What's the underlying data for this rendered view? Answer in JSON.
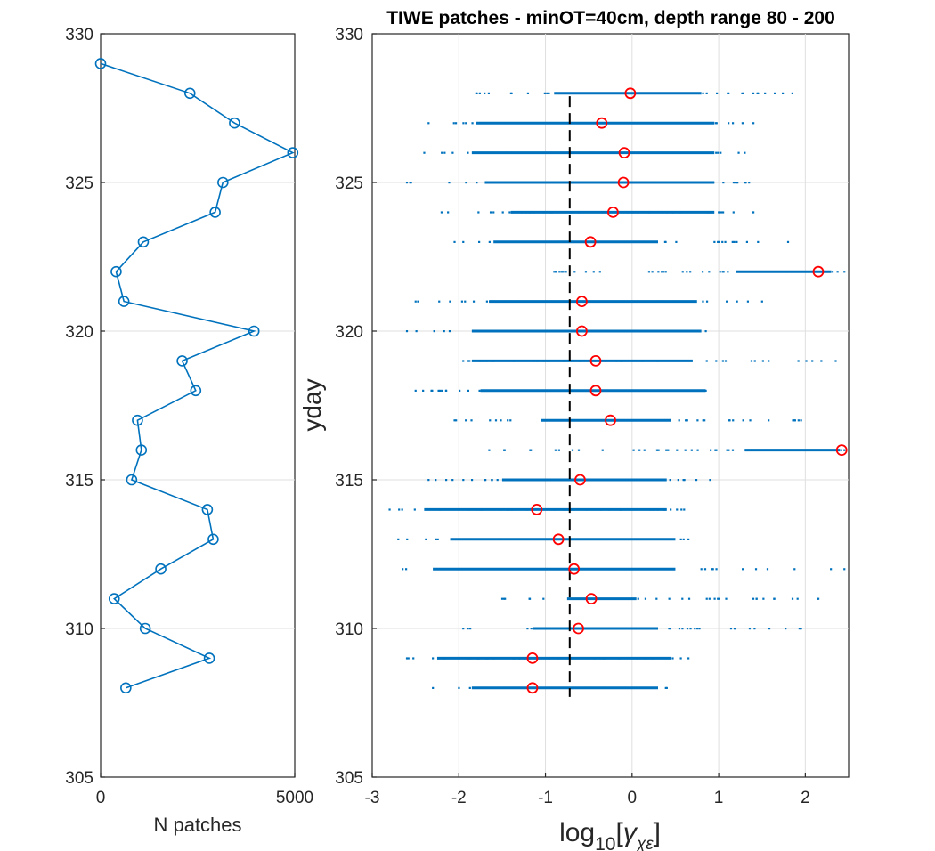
{
  "colors": {
    "series": "#0072bd",
    "median": "#ff0000",
    "reference": "#000000",
    "grid": "#dfdfdf",
    "axis": "#262626"
  },
  "chart_data": [
    {
      "id": "n-patches",
      "type": "line",
      "title": "",
      "xlabel": "N patches",
      "ylabel": "",
      "xlim": [
        0,
        5000
      ],
      "ylim": [
        305,
        330
      ],
      "xticks": [
        0,
        5000
      ],
      "yticks": [
        305,
        310,
        315,
        320,
        325,
        330
      ],
      "xtick_labels": [
        "0",
        "5000"
      ],
      "ytick_labels": [
        "305",
        "310",
        "315",
        "320",
        "325",
        "330"
      ],
      "grid": true,
      "marker": "circle",
      "series": [
        {
          "name": "N patches",
          "points": [
            {
              "x": 650,
              "y": 308
            },
            {
              "x": 2800,
              "y": 309
            },
            {
              "x": 1150,
              "y": 310
            },
            {
              "x": 350,
              "y": 311
            },
            {
              "x": 1550,
              "y": 312
            },
            {
              "x": 2900,
              "y": 313
            },
            {
              "x": 2750,
              "y": 314
            },
            {
              "x": 800,
              "y": 315
            },
            {
              "x": 1050,
              "y": 316
            },
            {
              "x": 950,
              "y": 317
            },
            {
              "x": 2450,
              "y": 318
            },
            {
              "x": 2100,
              "y": 319
            },
            {
              "x": 3950,
              "y": 320
            },
            {
              "x": 600,
              "y": 321
            },
            {
              "x": 400,
              "y": 322
            },
            {
              "x": 1100,
              "y": 323
            },
            {
              "x": 2950,
              "y": 324
            },
            {
              "x": 3150,
              "y": 325
            },
            {
              "x": 4950,
              "y": 326
            },
            {
              "x": 3450,
              "y": 327
            },
            {
              "x": 2300,
              "y": 328
            },
            {
              "x": 0,
              "y": 329
            }
          ]
        }
      ]
    },
    {
      "id": "gamma-scatter",
      "type": "scatter",
      "title": "TIWE patches - minOT=40cm, depth range 80 - 200",
      "xlabel_main": "log",
      "xlabel_sub": "10",
      "xlabel_open": "[",
      "xlabel_symbol": "γ",
      "xlabel_symbol_sub": "χε",
      "xlabel_close": "]",
      "ylabel": "yday",
      "xlim": [
        -3,
        2.5
      ],
      "ylim": [
        305,
        330
      ],
      "xticks": [
        -3,
        -2,
        -1,
        0,
        1,
        2
      ],
      "yticks": [
        305,
        310,
        315,
        320,
        325,
        330
      ],
      "xtick_labels": [
        "-3",
        "-2",
        "-1",
        "0",
        "1",
        "2"
      ],
      "ytick_labels": [
        "305",
        "310",
        "315",
        "320",
        "325",
        "330"
      ],
      "grid": true,
      "reference_line": {
        "x": -0.72,
        "y_from": 307.7,
        "y_to": 327.9,
        "style": "dashed"
      },
      "rows": [
        {
          "yday": 308,
          "x_min": -2.3,
          "x_max": 0.4,
          "dense_min": -1.85,
          "dense_max": 0.3,
          "median": -1.15
        },
        {
          "yday": 309,
          "x_min": -2.6,
          "x_max": 0.65,
          "dense_min": -2.25,
          "dense_max": 0.45,
          "median": -1.15
        },
        {
          "yday": 310,
          "x_min": -1.95,
          "x_max": 1.95,
          "dense_min": -1.15,
          "dense_max": 0.3,
          "median": -0.62
        },
        {
          "yday": 311,
          "x_min": -1.5,
          "x_max": 2.15,
          "dense_min": -0.75,
          "dense_max": 0.05,
          "median": -0.47
        },
        {
          "yday": 312,
          "x_min": -2.65,
          "x_max": 2.45,
          "dense_min": -2.3,
          "dense_max": 0.5,
          "median": -0.67
        },
        {
          "yday": 313,
          "x_min": -2.7,
          "x_max": 0.65,
          "dense_min": -2.1,
          "dense_max": 0.5,
          "median": -0.85
        },
        {
          "yday": 314,
          "x_min": -2.8,
          "x_max": 0.6,
          "dense_min": -2.4,
          "dense_max": 0.4,
          "median": -1.1
        },
        {
          "yday": 315,
          "x_min": -2.35,
          "x_max": 0.9,
          "dense_min": -1.5,
          "dense_max": 0.4,
          "median": -0.6
        },
        {
          "yday": 316,
          "x_min": -1.65,
          "x_max": 2.45,
          "dense_min": 1.3,
          "dense_max": 2.4,
          "median": 2.42
        },
        {
          "yday": 317,
          "x_min": -2.05,
          "x_max": 1.95,
          "dense_min": -1.05,
          "dense_max": 0.45,
          "median": -0.25
        },
        {
          "yday": 318,
          "x_min": -2.5,
          "x_max": 0.85,
          "dense_min": -1.75,
          "dense_max": 0.85,
          "median": -0.42
        },
        {
          "yday": 319,
          "x_min": -1.95,
          "x_max": 2.35,
          "dense_min": -1.85,
          "dense_max": 0.7,
          "median": -0.42
        },
        {
          "yday": 320,
          "x_min": -2.6,
          "x_max": 0.85,
          "dense_min": -1.85,
          "dense_max": 0.8,
          "median": -0.58
        },
        {
          "yday": 321,
          "x_min": -2.5,
          "x_max": 1.5,
          "dense_min": -1.65,
          "dense_max": 0.75,
          "median": -0.58
        },
        {
          "yday": 322,
          "x_min": -0.9,
          "x_max": 2.45,
          "dense_min": 1.2,
          "dense_max": 2.3,
          "median": 2.15
        },
        {
          "yday": 323,
          "x_min": -2.05,
          "x_max": 1.8,
          "dense_min": -1.6,
          "dense_max": 0.3,
          "median": -0.48
        },
        {
          "yday": 324,
          "x_min": -2.2,
          "x_max": 1.4,
          "dense_min": -1.4,
          "dense_max": 0.95,
          "median": -0.22
        },
        {
          "yday": 325,
          "x_min": -2.6,
          "x_max": 1.35,
          "dense_min": -1.7,
          "dense_max": 0.95,
          "median": -0.1
        },
        {
          "yday": 326,
          "x_min": -2.4,
          "x_max": 1.3,
          "dense_min": -1.85,
          "dense_max": 0.95,
          "median": -0.09
        },
        {
          "yday": 327,
          "x_min": -2.35,
          "x_max": 1.4,
          "dense_min": -1.8,
          "dense_max": 0.95,
          "median": -0.35
        },
        {
          "yday": 328,
          "x_min": -1.8,
          "x_max": 1.85,
          "dense_min": -0.9,
          "dense_max": 0.8,
          "median": -0.02
        }
      ]
    }
  ]
}
